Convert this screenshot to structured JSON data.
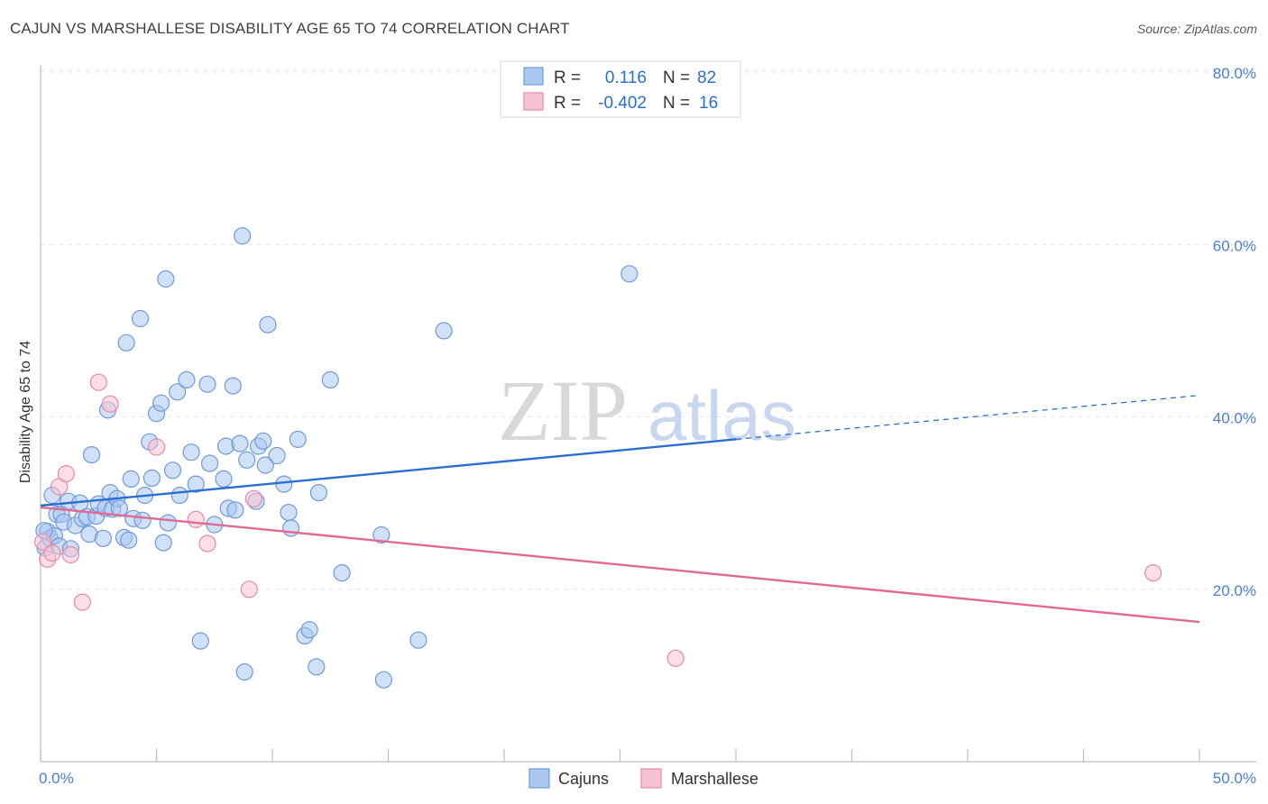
{
  "header": {
    "title": "CAJUN VS MARSHALLESE DISABILITY AGE 65 TO 74 CORRELATION CHART",
    "source": "Source: ZipAtlas.com"
  },
  "watermark": {
    "zip": "ZIP",
    "atlas": "atlas"
  },
  "legend": {
    "rows": [
      {
        "r_label": "R =",
        "r_value": "0.116",
        "n_label": "N =",
        "n_value": "82",
        "color": "#a9c7f0"
      },
      {
        "r_label": "R =",
        "r_value": "-0.402",
        "n_label": "N =",
        "n_value": "16",
        "color": "#f5b8cb"
      }
    ]
  },
  "bottom_legend": {
    "items": [
      "Cajuns",
      "Marshallese"
    ]
  },
  "colors": {
    "cajun_fill": "#a9c7f0",
    "cajun_stroke": "#6e9ad8",
    "cajun_line": "#2a6fcf",
    "marsh_fill": "#f7c2d2",
    "marsh_stroke": "#e58aa8",
    "marsh_line": "#e06a94",
    "tick_text": "#4a7fd0"
  },
  "chart_data": {
    "type": "scatter",
    "title": "CAJUN VS MARSHALLESE DISABILITY AGE 65 TO 74 CORRELATION CHART",
    "xlabel": "",
    "ylabel": "Disability Age 65 to 74",
    "xlim": [
      0,
      50
    ],
    "ylim": [
      0,
      80
    ],
    "x_tick_labels": [
      "0.0%",
      "50.0%"
    ],
    "y_ticks": [
      20,
      40,
      60,
      80
    ],
    "y_tick_labels": [
      "20.0%",
      "40.0%",
      "60.0%",
      "80.0%"
    ],
    "grid": true,
    "series": [
      {
        "name": "Cajuns",
        "r": 0.116,
        "n": 82,
        "trend": {
          "x": [
            0,
            30
          ],
          "y": [
            29.7,
            37.4
          ],
          "dashed_extension": {
            "x": [
              30,
              50
            ],
            "y": [
              37.4,
              42.5
            ]
          }
        },
        "points": [
          [
            0.2,
            24.8
          ],
          [
            0.3,
            26.7
          ],
          [
            0.4,
            25.9
          ],
          [
            0.5,
            30.9
          ],
          [
            0.6,
            26.2
          ],
          [
            0.7,
            28.7
          ],
          [
            0.8,
            25.0
          ],
          [
            0.9,
            28.7
          ],
          [
            1.0,
            27.8
          ],
          [
            1.2,
            30.2
          ],
          [
            1.3,
            24.7
          ],
          [
            1.5,
            27.4
          ],
          [
            1.7,
            30.0
          ],
          [
            1.8,
            28.2
          ],
          [
            2.0,
            28.4
          ],
          [
            2.1,
            26.4
          ],
          [
            2.2,
            35.6
          ],
          [
            2.4,
            28.5
          ],
          [
            2.5,
            29.9
          ],
          [
            2.7,
            25.9
          ],
          [
            2.8,
            29.4
          ],
          [
            3.0,
            31.2
          ],
          [
            3.1,
            29.3
          ],
          [
            3.3,
            30.5
          ],
          [
            3.4,
            29.4
          ],
          [
            3.6,
            26.0
          ],
          [
            3.7,
            48.6
          ],
          [
            3.8,
            25.7
          ],
          [
            3.9,
            32.8
          ],
          [
            4.0,
            28.2
          ],
          [
            4.3,
            51.4
          ],
          [
            4.4,
            28.0
          ],
          [
            4.5,
            30.9
          ],
          [
            4.7,
            37.1
          ],
          [
            4.8,
            32.9
          ],
          [
            5.0,
            40.4
          ],
          [
            5.2,
            41.6
          ],
          [
            5.3,
            25.4
          ],
          [
            5.4,
            56.0
          ],
          [
            5.5,
            27.7
          ],
          [
            5.7,
            33.8
          ],
          [
            5.9,
            42.9
          ],
          [
            6.0,
            30.9
          ],
          [
            6.3,
            44.3
          ],
          [
            6.5,
            35.9
          ],
          [
            6.7,
            32.2
          ],
          [
            6.9,
            14.0
          ],
          [
            7.2,
            43.8
          ],
          [
            7.3,
            34.6
          ],
          [
            7.5,
            27.5
          ],
          [
            7.9,
            32.8
          ],
          [
            8.0,
            36.6
          ],
          [
            8.1,
            29.4
          ],
          [
            8.3,
            43.6
          ],
          [
            8.4,
            29.2
          ],
          [
            8.6,
            36.9
          ],
          [
            8.7,
            61.0
          ],
          [
            8.8,
            10.4
          ],
          [
            8.9,
            35.0
          ],
          [
            9.3,
            30.2
          ],
          [
            9.4,
            36.6
          ],
          [
            9.6,
            37.2
          ],
          [
            9.7,
            34.4
          ],
          [
            9.8,
            50.7
          ],
          [
            10.2,
            35.5
          ],
          [
            10.5,
            32.2
          ],
          [
            10.7,
            28.9
          ],
          [
            10.8,
            27.1
          ],
          [
            11.1,
            37.4
          ],
          [
            11.4,
            14.6
          ],
          [
            11.6,
            15.3
          ],
          [
            11.9,
            11.0
          ],
          [
            12.0,
            31.2
          ],
          [
            12.5,
            44.3
          ],
          [
            13.0,
            21.9
          ],
          [
            14.7,
            26.3
          ],
          [
            14.8,
            9.5
          ],
          [
            16.3,
            14.1
          ],
          [
            17.4,
            50.0
          ],
          [
            25.4,
            56.6
          ],
          [
            2.9,
            40.8
          ],
          [
            0.15,
            26.8
          ]
        ]
      },
      {
        "name": "Marshallese",
        "r": -0.402,
        "n": 16,
        "trend": {
          "x": [
            0,
            50
          ],
          "y": [
            29.5,
            16.2
          ]
        },
        "points": [
          [
            0.1,
            25.5
          ],
          [
            0.3,
            23.5
          ],
          [
            0.5,
            24.2
          ],
          [
            0.8,
            31.9
          ],
          [
            1.1,
            33.4
          ],
          [
            1.3,
            24.0
          ],
          [
            1.8,
            18.5
          ],
          [
            2.5,
            44.0
          ],
          [
            3.0,
            41.5
          ],
          [
            5.0,
            36.5
          ],
          [
            6.7,
            28.1
          ],
          [
            7.2,
            25.3
          ],
          [
            9.0,
            20.0
          ],
          [
            9.2,
            30.5
          ],
          [
            27.4,
            12.0
          ],
          [
            48.0,
            21.9
          ]
        ]
      }
    ]
  }
}
